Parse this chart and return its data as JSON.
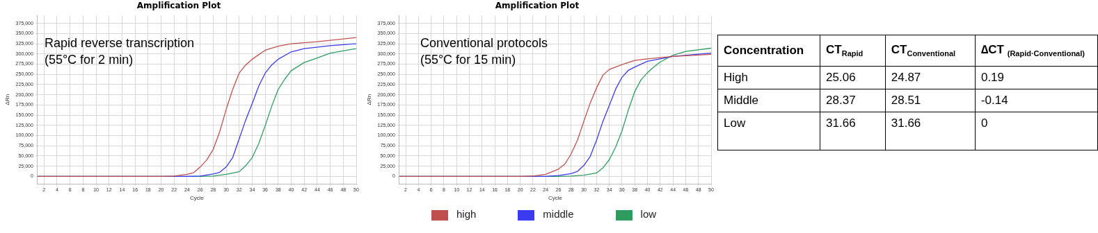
{
  "chart_data": [
    {
      "type": "line",
      "title": "Amplification Plot",
      "xlabel": "Cycle",
      "ylabel": "ΔRn",
      "annotations": [
        "Rapid reverse transcription\n(55°C for 2 min)"
      ],
      "xlim": [
        1,
        50
      ],
      "ylim": [
        -18000,
        394000
      ],
      "xticks": [
        2,
        4,
        6,
        8,
        10,
        12,
        14,
        16,
        18,
        20,
        22,
        24,
        26,
        28,
        30,
        32,
        34,
        36,
        38,
        40,
        42,
        44,
        46,
        48,
        50
      ],
      "yticks": [
        {
          "value": 0,
          "label": "0"
        },
        {
          "value": 25000,
          "label": "25,000"
        },
        {
          "value": 50000,
          "label": "50,000"
        },
        {
          "value": 75000,
          "label": "75,000"
        },
        {
          "value": 100000,
          "label": "100,000"
        },
        {
          "value": 125000,
          "label": "125,000"
        },
        {
          "value": 150000,
          "label": "150,000"
        },
        {
          "value": 175000,
          "label": "175,000"
        },
        {
          "value": 200000,
          "label": "200,000"
        },
        {
          "value": 225000,
          "label": "225,000"
        },
        {
          "value": 250000,
          "label": "250,000"
        },
        {
          "value": 275000,
          "label": "275,000"
        },
        {
          "value": 300000,
          "label": "300,000"
        },
        {
          "value": 325000,
          "label": "325,000"
        },
        {
          "value": 350000,
          "label": "350,000"
        },
        {
          "value": 375000,
          "label": "375,000"
        }
      ],
      "grid": true,
      "legend": "bottom",
      "marker": "none",
      "line_style": "solid",
      "series": [
        {
          "name": "high",
          "color": "#c0504d",
          "x": [
            1,
            20,
            22,
            24,
            25,
            26,
            27,
            28,
            29,
            30,
            31,
            32,
            33,
            34,
            36,
            38,
            40,
            44,
            50
          ],
          "values": [
            0,
            0,
            1000,
            5000,
            9000,
            23000,
            40000,
            66000,
            109000,
            164000,
            213000,
            253000,
            273000,
            287000,
            309000,
            319000,
            325000,
            330000,
            340000
          ]
        },
        {
          "name": "middle",
          "color": "#3a3af0",
          "x": [
            1,
            24,
            26,
            28,
            29,
            30,
            31,
            32,
            33,
            34,
            35,
            36,
            37,
            38,
            40,
            42,
            46,
            50
          ],
          "values": [
            0,
            0,
            1000,
            6000,
            10000,
            23000,
            46000,
            92000,
            138000,
            178000,
            221000,
            253000,
            273000,
            287000,
            305000,
            313000,
            320000,
            325000
          ]
        },
        {
          "name": "low",
          "color": "#2e9b5f",
          "x": [
            1,
            26,
            28,
            30,
            32,
            33,
            34,
            35,
            36,
            37,
            38,
            39,
            40,
            42,
            44,
            46,
            50
          ],
          "values": [
            0,
            0,
            1000,
            5000,
            11500,
            26000,
            46000,
            80000,
            124000,
            172000,
            213000,
            238000,
            259000,
            279000,
            290000,
            302000,
            313000
          ]
        }
      ]
    },
    {
      "type": "line",
      "title": "Amplification Plot",
      "xlabel": "Cycle",
      "ylabel": "ΔRn",
      "annotations": [
        "Conventional protocols\n(55°C for 15 min)"
      ],
      "xlim": [
        1,
        50
      ],
      "ylim": [
        -18000,
        394000
      ],
      "xticks": [
        2,
        4,
        6,
        8,
        10,
        12,
        14,
        16,
        18,
        20,
        22,
        24,
        26,
        28,
        30,
        32,
        34,
        36,
        38,
        40,
        42,
        44,
        46,
        48,
        50
      ],
      "yticks": [
        {
          "value": 0,
          "label": "0"
        },
        {
          "value": 25000,
          "label": "25,000"
        },
        {
          "value": 50000,
          "label": "50,000"
        },
        {
          "value": 75000,
          "label": "75,000"
        },
        {
          "value": 100000,
          "label": "100,000"
        },
        {
          "value": 125000,
          "label": "125,000"
        },
        {
          "value": 150000,
          "label": "150,000"
        },
        {
          "value": 175000,
          "label": "175,000"
        },
        {
          "value": 200000,
          "label": "200,000"
        },
        {
          "value": 225000,
          "label": "225,000"
        },
        {
          "value": 250000,
          "label": "250,000"
        },
        {
          "value": 275000,
          "label": "275,000"
        },
        {
          "value": 300000,
          "label": "300,000"
        },
        {
          "value": 325000,
          "label": "325,000"
        },
        {
          "value": 350000,
          "label": "350,000"
        },
        {
          "value": 375000,
          "label": "375,000"
        }
      ],
      "grid": true,
      "marker": "none",
      "line_style": "solid",
      "series": [
        {
          "color": "#c0504d",
          "x": [
            1,
            20,
            22,
            24,
            26,
            27,
            28,
            29,
            30,
            31,
            32,
            33,
            34,
            36,
            38,
            40,
            44,
            50
          ],
          "values": [
            0,
            0,
            1000,
            5000,
            18000,
            30000,
            55000,
            89000,
            135000,
            180000,
            217000,
            248000,
            262000,
            274000,
            284000,
            288000,
            294000,
            299000
          ]
        },
        {
          "color": "#3a3af0",
          "x": [
            1,
            24,
            26,
            28,
            29,
            30,
            31,
            32,
            33,
            34,
            35,
            36,
            37,
            38,
            40,
            44,
            50
          ],
          "values": [
            0,
            0,
            2000,
            7000,
            12500,
            27000,
            49000,
            89000,
            135000,
            174000,
            214000,
            243000,
            260000,
            268000,
            282000,
            294000,
            302000
          ]
        },
        {
          "color": "#2e9b5f",
          "x": [
            1,
            26,
            28,
            30,
            32,
            33,
            34,
            35,
            36,
            37,
            38,
            39,
            40,
            41,
            42,
            44,
            46,
            50
          ],
          "values": [
            0,
            0,
            1000,
            3000,
            8500,
            21000,
            41000,
            72000,
            112000,
            163000,
            208000,
            237000,
            254000,
            268000,
            280000,
            297000,
            306000,
            314000
          ]
        }
      ]
    },
    {
      "type": "other",
      "categories": [
        "Concentration",
        "CT$_{Rapid}$",
        "CT$_{Conventional}$",
        "∆CT $_{(Rapid·Conventional)}$"
      ],
      "annotations": [
        "High",
        "25.06",
        "24.87",
        "0.19",
        "Middle",
        "28.37",
        "28.51",
        "-0.14",
        "Low",
        "31.66",
        "31.66",
        "0"
      ]
    }
  ]
}
